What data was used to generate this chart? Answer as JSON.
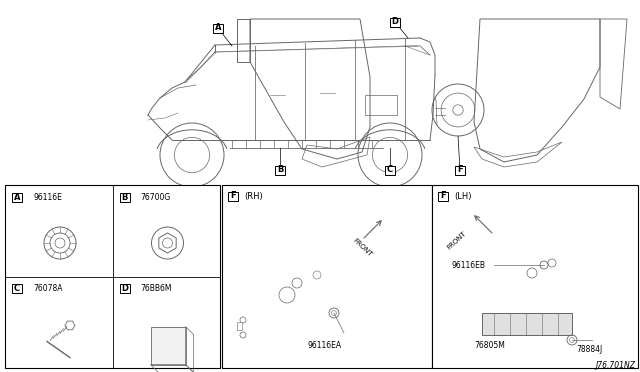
{
  "bg_color": "#ffffff",
  "diagram_note": "J76.701NZ",
  "parts": {
    "A": "96116E",
    "B": "76700G",
    "C": "76078A",
    "D": "76BB6M",
    "F_RH": "96116EA",
    "F_LH_1": "96116EB",
    "F_LH_2": "76805M",
    "F_LH_3": "78884J"
  },
  "lc": "#666666",
  "bc": "#000000",
  "tc": "#000000"
}
